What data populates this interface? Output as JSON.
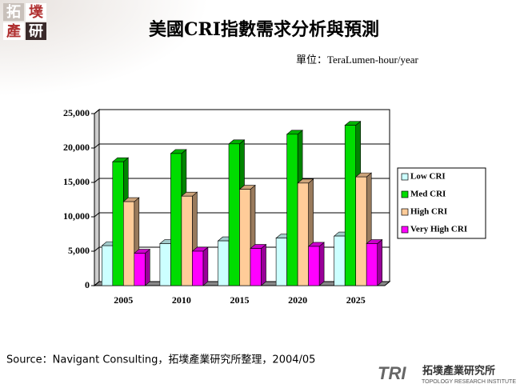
{
  "logo": {
    "top": [
      "拓",
      "墣",
      "產",
      "研"
    ],
    "bottom_mark": "TRI",
    "bottom_name": "拓墣產業研究所",
    "bottom_sub": "TOPOLOGY RESEARCH INSTITUTE"
  },
  "chart_data": {
    "type": "bar3d",
    "title": "美國CRI指數需求分析與預測",
    "unit_label": "單位：TeraLumen-hour/year",
    "source": "Source：Navigant Consulting，拓墣產業研究所整理，2004/05",
    "categories": [
      "2005",
      "2010",
      "2015",
      "2020",
      "2025"
    ],
    "series": [
      {
        "name": "Low CRI",
        "color": "#ccffff",
        "values": [
          5800,
          6100,
          6500,
          6900,
          7200
        ]
      },
      {
        "name": "Med CRI",
        "color": "#00dd00",
        "values": [
          18000,
          19200,
          20600,
          22000,
          23300
        ]
      },
      {
        "name": "High CRI",
        "color": "#ffcc99",
        "values": [
          12200,
          13000,
          14000,
          14900,
          15800
        ]
      },
      {
        "name": "Very High CRI",
        "color": "#ff00ff",
        "values": [
          4700,
          5000,
          5400,
          5700,
          6100
        ]
      }
    ],
    "ylim": [
      0,
      25000
    ],
    "yticks": [
      0,
      {
        "value": 5000,
        "label": "5,000"
      },
      {
        "value": 10000,
        "label": "10,000"
      },
      {
        "value": 15000,
        "label": "15,000"
      },
      {
        "value": 20000,
        "label": "20,000"
      },
      {
        "value": 25000,
        "label": "25,000"
      }
    ],
    "grid": true,
    "legend": "right"
  }
}
